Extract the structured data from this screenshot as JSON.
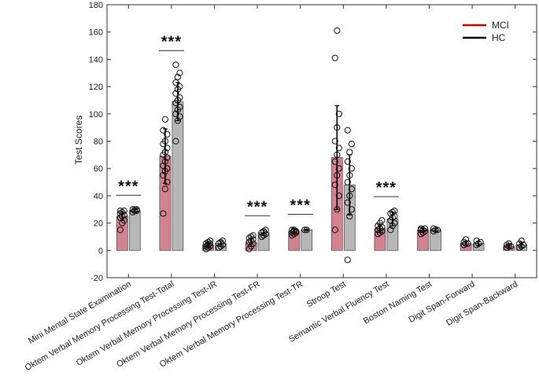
{
  "chart_data": {
    "type": "bar",
    "ylabel": "Test Scores",
    "ylim": [
      -20,
      180
    ],
    "yticks": [
      -20,
      0,
      20,
      40,
      60,
      80,
      100,
      120,
      140,
      160,
      180
    ],
    "categories": [
      "Mini Mental State Examination",
      "Oktem Verbal Memory Processing Test-Total",
      "Oktem Verbal Memory Processing Test-IR",
      "Oktem Verbal Memory Processing Test-FR",
      "Oktem Verbal Memory Processing Test-TR",
      "Stroop Test",
      "Semantic Verbal Fluency Test",
      "Boston Naming Test",
      "Digit Span-Forward",
      "Digit Span-Backward"
    ],
    "series": [
      {
        "name": "MCI",
        "color": "#d4828f",
        "legend_color": "#cc0000",
        "values": [
          25,
          69,
          4,
          6,
          14,
          68,
          16,
          15,
          5,
          3
        ],
        "sd": [
          3,
          20,
          2,
          3,
          2,
          38,
          3,
          1,
          1.5,
          1.2
        ],
        "points": [
          [
            15,
            20,
            22,
            24,
            25,
            26,
            27,
            28,
            29,
            29
          ],
          [
            27,
            45,
            50,
            55,
            58,
            60,
            62,
            65,
            68,
            70,
            72,
            75,
            78,
            80,
            85,
            88,
            96
          ],
          [
            1,
            2,
            3,
            3,
            4,
            5,
            5,
            6,
            7
          ],
          [
            1,
            3,
            5,
            6,
            7,
            8,
            9,
            10,
            11
          ],
          [
            11,
            12,
            13,
            13,
            14,
            14,
            15,
            15
          ],
          [
            15,
            30,
            40,
            48,
            55,
            60,
            65,
            70,
            75,
            80,
            90,
            100,
            141,
            161
          ],
          [
            12,
            13,
            14,
            15,
            16,
            17,
            18,
            20,
            22
          ],
          [
            12,
            13,
            14,
            15,
            15,
            16,
            16
          ],
          [
            4,
            5,
            5,
            6,
            8
          ],
          [
            2,
            3,
            3,
            4,
            5
          ]
        ]
      },
      {
        "name": "HC",
        "color": "#b7b7b7",
        "legend_color": "#000000",
        "values": [
          29,
          109,
          5,
          13,
          15,
          48,
          23,
          15,
          5,
          4
        ],
        "sd": [
          1,
          14,
          2,
          2,
          0.5,
          22,
          5,
          1,
          1.5,
          2
        ],
        "points": [
          [
            28,
            29,
            29,
            30,
            30,
            30
          ],
          [
            80,
            95,
            98,
            100,
            103,
            105,
            108,
            110,
            112,
            115,
            118,
            120,
            123,
            127,
            130,
            136
          ],
          [
            2,
            3,
            4,
            5,
            6,
            7
          ],
          [
            10,
            11,
            12,
            13,
            14,
            15
          ],
          [
            15,
            15
          ],
          [
            -7,
            25,
            30,
            35,
            40,
            45,
            50,
            55,
            60,
            65,
            72,
            78,
            88
          ],
          [
            15,
            18,
            20,
            22,
            24,
            25,
            27,
            28,
            29
          ],
          [
            14,
            15,
            15,
            16
          ],
          [
            4,
            5,
            6,
            7
          ],
          [
            2,
            3,
            4,
            5,
            7
          ]
        ]
      }
    ],
    "significance": [
      {
        "category_index": 0,
        "label": "***"
      },
      {
        "category_index": 1,
        "label": "***"
      },
      {
        "category_index": 3,
        "label": "***"
      },
      {
        "category_index": 4,
        "label": "***"
      },
      {
        "category_index": 6,
        "label": "***"
      }
    ],
    "legend_placement": "top-right",
    "grid": false
  }
}
